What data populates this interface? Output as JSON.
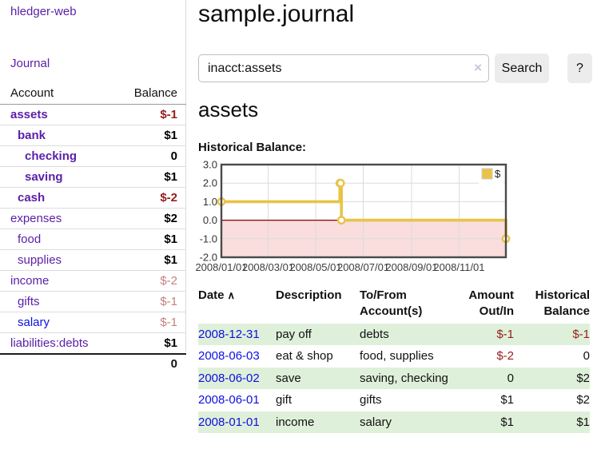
{
  "app": {
    "brand": "hledger-web"
  },
  "sidebar": {
    "journal_link": "Journal",
    "accounts": {
      "col_account": "Account",
      "col_balance": "Balance",
      "rows": [
        {
          "name": "assets",
          "balance": "$-1",
          "indent": 0,
          "name_bold": true,
          "name_color": "purple",
          "value_color": "maroon",
          "value_bold": true
        },
        {
          "name": "bank",
          "balance": "$1",
          "indent": 1,
          "name_bold": true,
          "name_color": "purple",
          "value_color": "black",
          "value_bold": true
        },
        {
          "name": "checking",
          "balance": "0",
          "indent": 2,
          "name_bold": true,
          "name_color": "purple",
          "value_color": "black",
          "value_bold": true
        },
        {
          "name": "saving",
          "balance": "$1",
          "indent": 2,
          "name_bold": true,
          "name_color": "purple",
          "value_color": "black",
          "value_bold": true
        },
        {
          "name": "cash",
          "balance": "$-2",
          "indent": 1,
          "name_bold": true,
          "name_color": "purple",
          "value_color": "maroon",
          "value_bold": true
        },
        {
          "name": "expenses",
          "balance": "$2",
          "indent": 0,
          "name_bold": false,
          "name_color": "purple",
          "value_color": "black",
          "value_bold": true
        },
        {
          "name": "food",
          "balance": "$1",
          "indent": 1,
          "name_bold": false,
          "name_color": "purple",
          "value_color": "black",
          "value_bold": true
        },
        {
          "name": "supplies",
          "balance": "$1",
          "indent": 1,
          "name_bold": false,
          "name_color": "purple",
          "value_color": "black",
          "value_bold": true
        },
        {
          "name": "income",
          "balance": "$-2",
          "indent": 0,
          "name_bold": false,
          "name_color": "purple",
          "value_color": "rose",
          "value_bold": false
        },
        {
          "name": "gifts",
          "balance": "$-1",
          "indent": 1,
          "name_bold": false,
          "name_color": "purple",
          "value_color": "rose",
          "value_bold": false
        },
        {
          "name": "salary",
          "balance": "$-1",
          "indent": 1,
          "name_bold": false,
          "name_color": "blue",
          "value_color": "rose",
          "value_bold": false
        },
        {
          "name": "liabilities:debts",
          "balance": "$1",
          "indent": 0,
          "name_bold": false,
          "name_color": "purple",
          "value_color": "black",
          "value_bold": true
        }
      ],
      "total": "0"
    }
  },
  "main": {
    "title": "sample.journal",
    "search": {
      "value": "inacct:assets",
      "clear_icon": "×",
      "search_button": "Search",
      "help_button": "?"
    },
    "heading": "assets",
    "chart_title": "Historical Balance:"
  },
  "chart_data": {
    "type": "line",
    "style": "step",
    "title": "Historical Balance",
    "series": [
      {
        "name": "$",
        "color": "#e9c348",
        "points": [
          {
            "date": "2008-01-01",
            "x": 0,
            "y": 1
          },
          {
            "date": "2008-06-01",
            "x": 152,
            "y": 2
          },
          {
            "date": "2008-06-02",
            "x": 153,
            "y": 2
          },
          {
            "date": "2008-06-03",
            "x": 154,
            "y": 0
          },
          {
            "date": "2008-12-31",
            "x": 365,
            "y": -1
          }
        ]
      }
    ],
    "xlim": [
      0,
      365
    ],
    "ylim": [
      -2,
      3
    ],
    "yticks": [
      {
        "label": "3.0",
        "y": 3
      },
      {
        "label": "2.0",
        "y": 2
      },
      {
        "label": "1.0",
        "y": 1
      },
      {
        "label": "0.0",
        "y": 0
      },
      {
        "label": "-1.0",
        "y": -1
      },
      {
        "label": "-2.0",
        "y": -2
      }
    ],
    "xticks": [
      {
        "label": "2008/01/01",
        "x": 0
      },
      {
        "label": "2008/03/01",
        "x": 60
      },
      {
        "label": "2008/05/01",
        "x": 121
      },
      {
        "label": "2008/07/01",
        "x": 182
      },
      {
        "label": "2008/09/01",
        "x": 244
      },
      {
        "label": "2008/11/01",
        "x": 305
      }
    ],
    "legend": {
      "label": "$",
      "position": "top-right"
    },
    "grid": true,
    "negative_region_color": "#fadddd",
    "zero_line_color": "#8b0000",
    "grid_color": "#dcdcdc",
    "border_color": "#4a4a4a"
  },
  "transactions": {
    "headers": {
      "date": "Date",
      "sort_icon": "∧",
      "description": "Description",
      "accounts": "To/From Account(s)",
      "amount": "Amount Out/In",
      "balance": "Historical Balance"
    },
    "rows": [
      {
        "date": "2008-12-31",
        "description": "pay off",
        "accounts": "debts",
        "amount": "$-1",
        "balance": "$-1",
        "amount_neg": true,
        "balance_neg": true,
        "shaded": true
      },
      {
        "date": "2008-06-03",
        "description": "eat & shop",
        "accounts": "food, supplies",
        "amount": "$-2",
        "balance": "0",
        "amount_neg": true,
        "balance_neg": false,
        "shaded": false
      },
      {
        "date": "2008-06-02",
        "description": "save",
        "accounts": "saving, checking",
        "amount": "0",
        "balance": "$2",
        "amount_neg": false,
        "balance_neg": false,
        "shaded": true
      },
      {
        "date": "2008-06-01",
        "description": "gift",
        "accounts": "gifts",
        "amount": "$1",
        "balance": "$2",
        "amount_neg": false,
        "balance_neg": false,
        "shaded": false
      },
      {
        "date": "2008-01-01",
        "description": "income",
        "accounts": "salary",
        "amount": "$1",
        "balance": "$1",
        "amount_neg": false,
        "balance_neg": false,
        "shaded": true
      }
    ]
  },
  "colors": {
    "link_purple": "#5b21a8",
    "link_blue": "#0f0fe0",
    "negative_strong": "#96201e",
    "negative_soft": "#c5807e",
    "row_green": "#dff0da",
    "chart_gold": "#e9c348"
  }
}
